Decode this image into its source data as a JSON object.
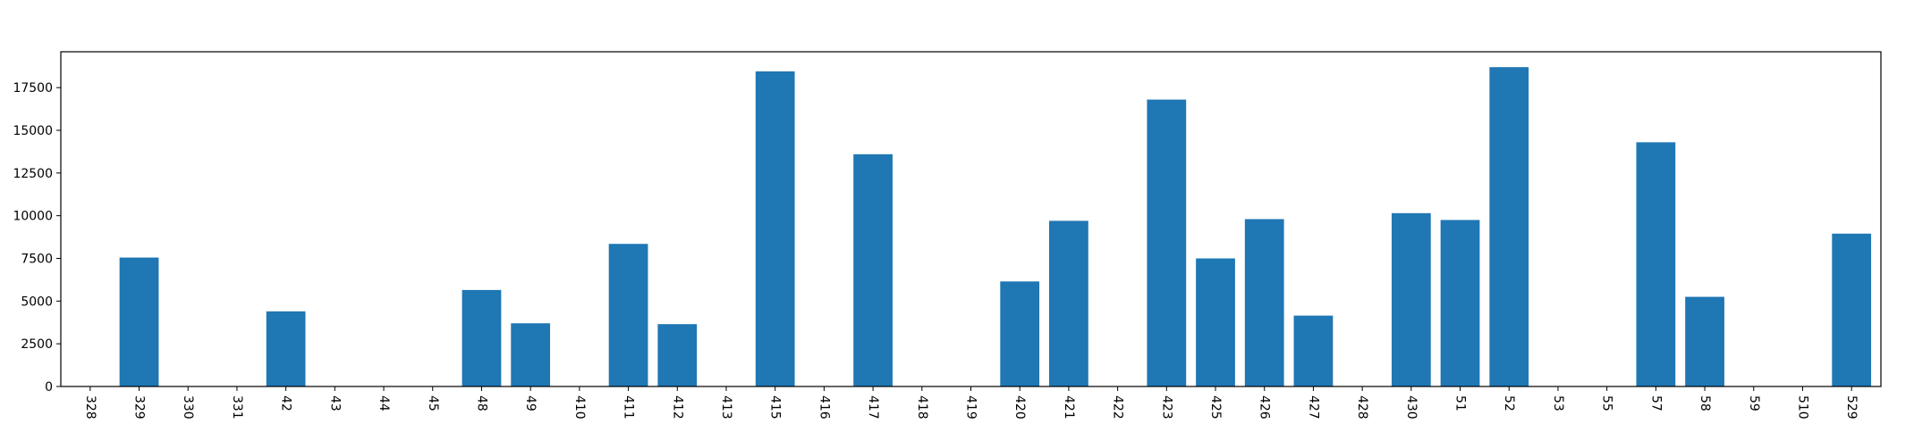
{
  "chart_data": {
    "type": "bar",
    "title": "",
    "xlabel": "",
    "ylabel": "",
    "categories": [
      "328",
      "329",
      "330",
      "331",
      "42",
      "43",
      "44",
      "45",
      "48",
      "49",
      "410",
      "411",
      "412",
      "413",
      "415",
      "416",
      "417",
      "418",
      "419",
      "420",
      "421",
      "422",
      "423",
      "425",
      "426",
      "427",
      "428",
      "430",
      "51",
      "52",
      "53",
      "55",
      "57",
      "58",
      "59",
      "510",
      "529"
    ],
    "values": [
      0,
      7550,
      0,
      0,
      4400,
      0,
      0,
      0,
      5650,
      3700,
      0,
      8350,
      3650,
      0,
      18450,
      0,
      13600,
      0,
      0,
      6150,
      9700,
      0,
      16800,
      7500,
      9800,
      4150,
      0,
      10150,
      9750,
      18700,
      0,
      0,
      14300,
      5250,
      0,
      0,
      8950
    ],
    "ylim": [
      0,
      19600
    ],
    "yticks": [
      0,
      2500,
      5000,
      7500,
      10000,
      12500,
      15000,
      17500
    ],
    "ytick_labels": [
      "0",
      "2500",
      "5000",
      "7500",
      "10000",
      "12500",
      "15000",
      "17500"
    ],
    "bar_color": "#1f77b4",
    "grid": false,
    "legend": "none",
    "xtick_rotation_deg": 90
  }
}
